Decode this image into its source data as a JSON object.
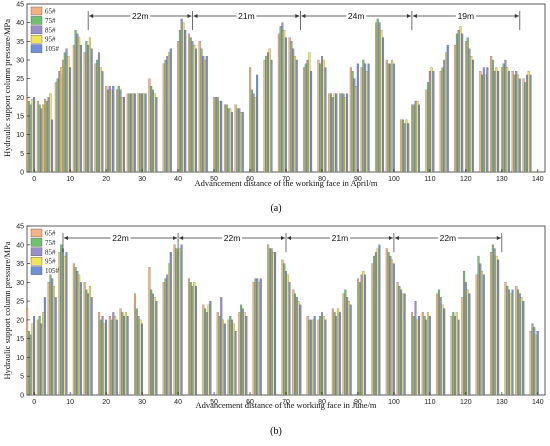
{
  "chart_data": [
    {
      "type": "bar",
      "panel_label": "(a)",
      "ylabel": "Hydraulic support column pressure/MPa",
      "xlabel": "Advancement distance of the working face in April/m",
      "xlim": [
        -2,
        142
      ],
      "ylim": [
        0,
        45
      ],
      "xticks": [
        0,
        10,
        20,
        30,
        40,
        50,
        60,
        70,
        80,
        90,
        100,
        110,
        120,
        130,
        140
      ],
      "yticks": [
        0,
        5,
        10,
        15,
        20,
        25,
        30,
        35,
        40,
        45
      ],
      "legend": {
        "placement": "top-left",
        "entries": [
          "65#",
          "75#",
          "85#",
          "95#",
          "105#"
        ]
      },
      "colors": [
        "#f4b183",
        "#70c070",
        "#9b8fc9",
        "#f2e55a",
        "#6f8fd8"
      ],
      "annotations": [
        {
          "label": "22m",
          "from": 15,
          "to": 44
        },
        {
          "label": "21m",
          "from": 44,
          "to": 74
        },
        {
          "label": "24m",
          "from": 74,
          "to": 105
        },
        {
          "label": "19m",
          "from": 105,
          "to": 135
        }
      ],
      "groups": [
        {
          "x": -1,
          "values": [
            20.5,
            19,
            18,
            19.5,
            20
          ]
        },
        {
          "x": 2,
          "values": [
            19,
            18,
            17,
            18,
            18
          ]
        },
        {
          "x": 4,
          "values": [
            19.5,
            19,
            20,
            21,
            14
          ]
        },
        {
          "x": 7,
          "values": [
            24,
            25,
            27,
            28,
            26
          ]
        },
        {
          "x": 9,
          "values": [
            30,
            32,
            33,
            31,
            28
          ]
        },
        {
          "x": 12,
          "values": [
            34,
            38,
            37,
            36,
            34
          ]
        },
        {
          "x": 15,
          "values": [
            32,
            35,
            34,
            36,
            33
          ]
        },
        {
          "x": 18,
          "values": [
            29,
            30,
            32,
            28,
            27
          ]
        },
        {
          "x": 21,
          "values": [
            23,
            22,
            23,
            22,
            23
          ]
        },
        {
          "x": 24,
          "values": [
            22,
            23,
            22,
            20,
            20
          ]
        },
        {
          "x": 27,
          "values": [
            21,
            21,
            21,
            21,
            21
          ]
        },
        {
          "x": 30,
          "values": [
            21,
            21,
            21,
            21,
            21
          ]
        },
        {
          "x": 33,
          "values": [
            25,
            23,
            22,
            21,
            20
          ]
        },
        {
          "x": 37,
          "values": [
            29,
            30,
            31,
            32,
            33
          ]
        },
        {
          "x": 41,
          "values": [
            35,
            38,
            41,
            40,
            38
          ]
        },
        {
          "x": 44,
          "values": [
            37,
            36,
            35,
            34,
            33
          ]
        },
        {
          "x": 47,
          "values": [
            35,
            33,
            31,
            30,
            31
          ]
        },
        {
          "x": 51,
          "values": [
            20,
            20,
            20,
            19,
            19
          ]
        },
        {
          "x": 54,
          "values": [
            18,
            18,
            17,
            17,
            16
          ]
        },
        {
          "x": 57,
          "values": [
            18,
            17,
            17,
            16,
            16
          ]
        },
        {
          "x": 61,
          "values": [
            28,
            22,
            21,
            20,
            26
          ]
        },
        {
          "x": 65,
          "values": [
            30,
            31,
            32,
            33,
            30
          ]
        },
        {
          "x": 69,
          "values": [
            37,
            39,
            40,
            38,
            36
          ]
        },
        {
          "x": 72,
          "values": [
            36,
            35,
            33,
            31,
            30
          ]
        },
        {
          "x": 76,
          "values": [
            28,
            29,
            30,
            32,
            27
          ]
        },
        {
          "x": 80,
          "values": [
            30,
            29,
            31,
            30,
            28
          ]
        },
        {
          "x": 83,
          "values": [
            21,
            21,
            20,
            21,
            21
          ]
        },
        {
          "x": 86,
          "values": [
            21,
            21,
            21,
            20,
            21
          ]
        },
        {
          "x": 89,
          "values": [
            28,
            27,
            25,
            23,
            29
          ]
        },
        {
          "x": 92,
          "values": [
            28,
            30,
            29,
            27,
            29
          ]
        },
        {
          "x": 96,
          "values": [
            40,
            41,
            40,
            38,
            36
          ]
        },
        {
          "x": 99,
          "values": [
            30,
            29,
            29,
            30,
            29
          ]
        },
        {
          "x": 103,
          "values": [
            14,
            14,
            13,
            14,
            13
          ]
        },
        {
          "x": 106,
          "values": [
            18,
            18,
            19,
            19,
            18
          ]
        },
        {
          "x": 110,
          "values": [
            22,
            24,
            27,
            28,
            27
          ]
        },
        {
          "x": 114,
          "values": [
            27,
            28,
            30,
            32,
            34
          ]
        },
        {
          "x": 118,
          "values": [
            34,
            37,
            38,
            39,
            37
          ]
        },
        {
          "x": 121,
          "values": [
            35,
            36,
            33,
            31,
            30
          ]
        },
        {
          "x": 125,
          "values": [
            27,
            26,
            28,
            26,
            28
          ]
        },
        {
          "x": 128,
          "values": [
            31,
            30,
            27,
            28,
            27
          ]
        },
        {
          "x": 131,
          "values": [
            28,
            29,
            30,
            28,
            27
          ]
        },
        {
          "x": 134,
          "values": [
            27,
            26,
            27,
            26,
            25
          ]
        },
        {
          "x": 137,
          "values": [
            25,
            24,
            26,
            27,
            26
          ]
        }
      ]
    },
    {
      "type": "bar",
      "panel_label": "(b)",
      "ylabel": "Hydraulic support column pressure/MPa",
      "xlabel": "Advancement distance of the working face in June/m",
      "xlim": [
        -2,
        142
      ],
      "ylim": [
        0,
        45
      ],
      "xticks": [
        0,
        10,
        20,
        30,
        40,
        50,
        60,
        70,
        80,
        90,
        100,
        110,
        120,
        130,
        140
      ],
      "yticks": [
        0,
        5,
        10,
        15,
        20,
        25,
        30,
        35,
        40,
        45
      ],
      "legend": {
        "placement": "top-left",
        "entries": [
          "65#",
          "75#",
          "85#",
          "95#",
          "105#"
        ]
      },
      "colors": [
        "#f4b183",
        "#70c070",
        "#9b8fc9",
        "#f2e55a",
        "#6f8fd8"
      ],
      "annotations": [
        {
          "label": "22m",
          "from": 8,
          "to": 40
        },
        {
          "label": "22m",
          "from": 40,
          "to": 70
        },
        {
          "label": "21m",
          "from": 70,
          "to": 100
        },
        {
          "label": "22m",
          "from": 100,
          "to": 130
        }
      ],
      "groups": [
        {
          "x": -1,
          "values": [
            23,
            17,
            16,
            19,
            21
          ]
        },
        {
          "x": 2,
          "values": [
            20,
            21,
            19,
            22,
            26
          ]
        },
        {
          "x": 5,
          "values": [
            30,
            32,
            31,
            29,
            26
          ]
        },
        {
          "x": 8,
          "values": [
            38,
            40,
            39,
            37,
            38
          ]
        },
        {
          "x": 12,
          "values": [
            35,
            34,
            33,
            32,
            30
          ]
        },
        {
          "x": 15,
          "values": [
            30,
            28,
            27,
            29,
            26
          ]
        },
        {
          "x": 19,
          "values": [
            22,
            20,
            21,
            19,
            20
          ]
        },
        {
          "x": 22,
          "values": [
            21,
            20,
            22,
            21,
            20
          ]
        },
        {
          "x": 25,
          "values": [
            23,
            22,
            21,
            22,
            21
          ]
        },
        {
          "x": 29,
          "values": [
            27,
            23,
            21,
            20,
            19
          ]
        },
        {
          "x": 33,
          "values": [
            34,
            28,
            27,
            26,
            25
          ]
        },
        {
          "x": 37,
          "values": [
            30,
            31,
            32,
            35,
            38
          ]
        },
        {
          "x": 40,
          "values": [
            40,
            39,
            38,
            39,
            40
          ]
        },
        {
          "x": 44,
          "values": [
            31,
            30,
            29,
            30,
            29
          ]
        },
        {
          "x": 48,
          "values": [
            24,
            23,
            22,
            24,
            25
          ]
        },
        {
          "x": 52,
          "values": [
            22,
            21,
            26,
            20,
            19
          ]
        },
        {
          "x": 55,
          "values": [
            20,
            21,
            20,
            19,
            17
          ]
        },
        {
          "x": 58,
          "values": [
            22,
            24,
            23,
            22,
            21
          ]
        },
        {
          "x": 62,
          "values": [
            30,
            31,
            31,
            30,
            31
          ]
        },
        {
          "x": 66,
          "values": [
            40,
            39,
            39,
            38,
            38
          ]
        },
        {
          "x": 70,
          "values": [
            36,
            35,
            33,
            32,
            30
          ]
        },
        {
          "x": 73,
          "values": [
            28,
            27,
            26,
            25,
            24
          ]
        },
        {
          "x": 77,
          "values": [
            21,
            20,
            20,
            20,
            21
          ]
        },
        {
          "x": 80,
          "values": [
            20,
            21,
            22,
            21,
            20
          ]
        },
        {
          "x": 84,
          "values": [
            23,
            22,
            21,
            23,
            22
          ]
        },
        {
          "x": 87,
          "values": [
            27,
            28,
            26,
            25,
            24
          ]
        },
        {
          "x": 91,
          "values": [
            31,
            30,
            32,
            33,
            32
          ]
        },
        {
          "x": 95,
          "values": [
            35,
            37,
            38,
            39,
            40
          ]
        },
        {
          "x": 99,
          "values": [
            39,
            38,
            37,
            36,
            35
          ]
        },
        {
          "x": 102,
          "values": [
            30,
            29,
            28,
            27,
            27
          ]
        },
        {
          "x": 106,
          "values": [
            22,
            21,
            25,
            20,
            21
          ]
        },
        {
          "x": 109,
          "values": [
            22,
            21,
            20,
            22,
            21
          ]
        },
        {
          "x": 113,
          "values": [
            27,
            28,
            26,
            24,
            23
          ]
        },
        {
          "x": 117,
          "values": [
            21,
            22,
            21,
            22,
            20
          ]
        },
        {
          "x": 120,
          "values": [
            26,
            33,
            30,
            28,
            27
          ]
        },
        {
          "x": 124,
          "values": [
            32,
            37,
            35,
            33,
            32
          ]
        },
        {
          "x": 128,
          "values": [
            38,
            40,
            39,
            37,
            36
          ]
        },
        {
          "x": 132,
          "values": [
            30,
            29,
            28,
            27,
            28
          ]
        },
        {
          "x": 135,
          "values": [
            29,
            28,
            27,
            26,
            25
          ]
        },
        {
          "x": 139,
          "values": [
            17,
            19,
            18,
            16,
            17
          ]
        }
      ]
    }
  ]
}
